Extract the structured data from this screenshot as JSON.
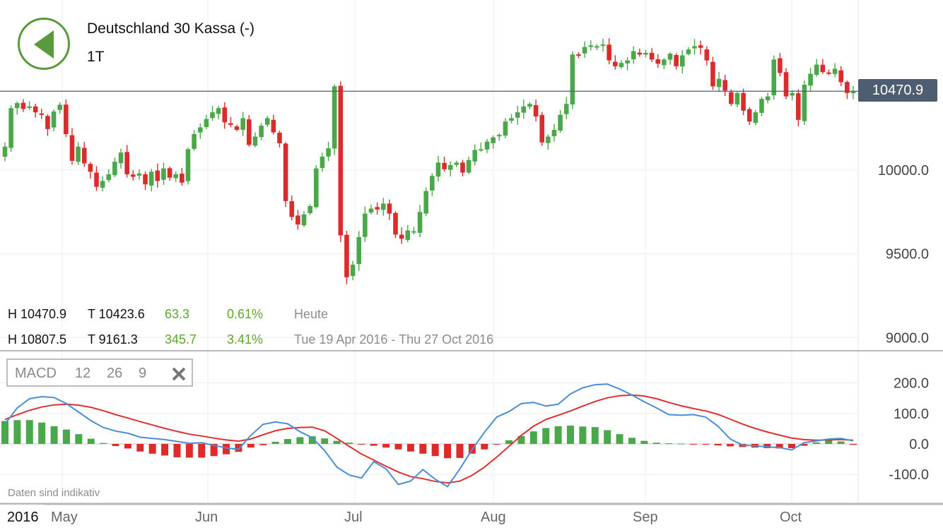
{
  "header": {
    "title": "Deutschland 30 Kassa (-)",
    "period": "1T",
    "back_icon": "back-arrow-icon"
  },
  "current_price": "10470.9",
  "stats": {
    "today": {
      "high": "H 10470.9",
      "low": "T 10423.6",
      "change": "63.3",
      "change_pct": "0.61%",
      "label": "Heute"
    },
    "range": {
      "high": "H 10807.5",
      "low": "T 9161.3",
      "change": "345.7",
      "change_pct": "3.41%",
      "label": "Tue 19 Apr 2016 - Thu 27 Oct 2016"
    }
  },
  "indicator": {
    "name": "MACD",
    "p1": "12",
    "p2": "26",
    "p3": "9",
    "close_icon": "close-icon"
  },
  "disclaimer": "Daten sind indikativ",
  "x_axis": {
    "year": "2016",
    "months": [
      "May",
      "Jun",
      "Jul",
      "Aug",
      "Sep",
      "Oct"
    ]
  },
  "colors": {
    "up": "#4aa84a",
    "down": "#dd2b2b",
    "macd_line": "#4a8fd1",
    "signal_line": "#dd3030",
    "price_tag": "#4e5d70",
    "accent": "#5a9a3c"
  },
  "chart_data": [
    {
      "type": "candlestick",
      "title": "Deutschland 30 Kassa (-)",
      "ylim": [
        9000,
        10900
      ],
      "y_ticks": [
        "10000.0",
        "9500.0",
        "9000.0"
      ],
      "x_tick_labels": [
        "May",
        "Jun",
        "Jul",
        "Aug",
        "Sep",
        "Oct"
      ],
      "last_price": 10470.9,
      "closes": [
        10140,
        10370,
        10400,
        10365,
        10380,
        10345,
        10330,
        10245,
        10350,
        10390,
        10215,
        10055,
        10140,
        10040,
        9990,
        9900,
        9935,
        9975,
        10050,
        10105,
        9975,
        9960,
        9980,
        9915,
        9990,
        9935,
        10010,
        9955,
        9975,
        9925,
        10125,
        10215,
        10255,
        10305,
        10345,
        10370,
        10285,
        10270,
        10240,
        10310,
        10150,
        10200,
        10265,
        10310,
        10225,
        10160,
        9815,
        9720,
        9675,
        9735,
        9785,
        10010,
        10080,
        10130,
        10500,
        9610,
        9360,
        9435,
        9600,
        9740,
        9770,
        9765,
        9800,
        9740,
        9615,
        9590,
        9640,
        9635,
        9750,
        9875,
        9965,
        10045,
        10005,
        10030,
        10045,
        9985,
        10060,
        10120,
        10125,
        10170,
        10195,
        10210,
        10290,
        10310,
        10345,
        10380,
        10395,
        10320,
        10165,
        10200,
        10240,
        10330,
        10395,
        10690,
        10690,
        10735,
        10745,
        10740,
        10750,
        10655,
        10620,
        10640,
        10655,
        10710,
        10690,
        10700,
        10660,
        10635,
        10660,
        10695,
        10620,
        10685,
        10720,
        10740,
        10730,
        10655,
        10500,
        10545,
        10475,
        10395,
        10460,
        10355,
        10290,
        10345,
        10425,
        10440,
        10660,
        10580,
        10440,
        10460,
        10300,
        10510,
        10575,
        10630,
        10585,
        10575,
        10605,
        10525,
        10460,
        10470
      ]
    },
    {
      "type": "line",
      "title": "MACD",
      "ylim": [
        -130,
        230
      ],
      "y_ticks": [
        "200.0",
        "100.0",
        "0.0",
        "-100.0"
      ],
      "series": [
        {
          "name": "MACD",
          "values": [
            65,
            118,
            148,
            155,
            152,
            132,
            104,
            76,
            54,
            42,
            35,
            22,
            18,
            14,
            8,
            2,
            4,
            -5,
            -13,
            -18,
            28,
            64,
            72,
            66,
            40,
            20,
            -22,
            -76,
            -102,
            -112,
            -58,
            -82,
            -133,
            -122,
            -84,
            -116,
            -140,
            -82,
            -18,
            38,
            88,
            106,
            132,
            136,
            124,
            130,
            164,
            184,
            194,
            196,
            180,
            160,
            138,
            118,
            96,
            94,
            96,
            88,
            58,
            16,
            -4,
            -6,
            -10,
            -12,
            -20,
            4,
            10,
            16,
            18,
            10
          ]
        },
        {
          "name": "Signal",
          "values": [
            80,
            96,
            110,
            121,
            128,
            130,
            127,
            120,
            109,
            96,
            85,
            73,
            62,
            51,
            41,
            32,
            26,
            19,
            13,
            9,
            16,
            30,
            43,
            51,
            54,
            55,
            43,
            18,
            -8,
            -33,
            -53,
            -73,
            -92,
            -107,
            -114,
            -123,
            -128,
            -122,
            -103,
            -76,
            -43,
            -8,
            28,
            58,
            80,
            94,
            108,
            124,
            139,
            151,
            158,
            160,
            157,
            148,
            136,
            125,
            116,
            108,
            97,
            81,
            65,
            51,
            39,
            29,
            19,
            14,
            12,
            13,
            14,
            12
          ]
        },
        {
          "name": "Histogram",
          "values": [
            75,
            78,
            78,
            70,
            58,
            47,
            32,
            17,
            3,
            -7,
            -15,
            -25,
            -32,
            -38,
            -44,
            -45,
            -45,
            -40,
            -34,
            -26,
            -12,
            -4,
            7,
            16,
            22,
            25,
            18,
            10,
            4,
            -2,
            -6,
            -12,
            -18,
            -25,
            -32,
            -40,
            -47,
            -46,
            -32,
            -18,
            -2,
            12,
            26,
            41,
            52,
            58,
            60,
            57,
            55,
            45,
            32,
            20,
            10,
            4,
            2,
            1,
            -1,
            -2,
            -5,
            -8,
            -10,
            -12,
            -14,
            -15,
            -14,
            -6,
            5,
            12,
            8,
            -3
          ]
        }
      ]
    }
  ]
}
